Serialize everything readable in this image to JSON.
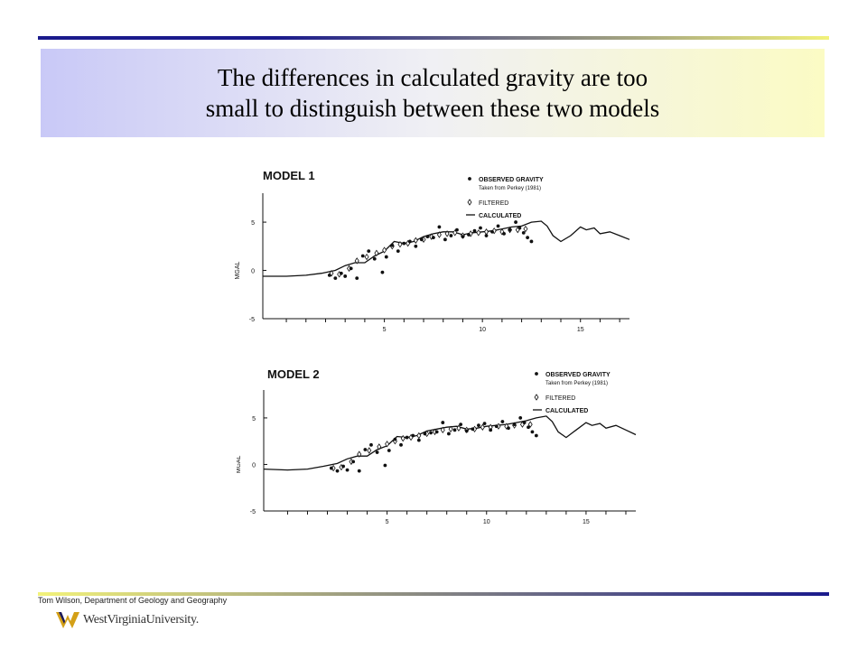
{
  "title": {
    "line1": "The differences in calculated gravity are too",
    "line2": "small to distinguish between these two models"
  },
  "footer": {
    "credit": "Tom Wilson, Department of Geology and Geography",
    "logo_text": "WestVirginiaUniversity."
  },
  "colors": {
    "rule_dark": "#1a1a8c",
    "rule_light": "#f2f27a",
    "title_left": "#c9c9f7",
    "title_right": "#fbfbc4",
    "ink": "#111111",
    "logo_gold": "#d4a017"
  },
  "chart_data": [
    {
      "type": "line",
      "title": "MODEL 1",
      "ylabel": "MGAL",
      "xlim": [
        -1.2,
        17.5
      ],
      "ylim": [
        -5,
        8
      ],
      "xticks": [
        5,
        10,
        15
      ],
      "yticks": [
        5,
        0,
        -5
      ],
      "legend": {
        "observed": "OBSERVED GRAVITY",
        "observed_note": "Taken from Perkey (1981)",
        "filtered": "FILTERED",
        "calculated": "CALCULATED"
      },
      "series": [
        {
          "name": "CALCULATED",
          "kind": "line",
          "x": [
            -1.2,
            0,
            1,
            1.8,
            2.5,
            3,
            3.5,
            4,
            4.5,
            5,
            5.5,
            6,
            6.5,
            7,
            7.5,
            8,
            8.5,
            9,
            9.5,
            10,
            10.5,
            11,
            11.5,
            12,
            12.5,
            13,
            13.3,
            13.6,
            14,
            14.5,
            15,
            15.3,
            15.7,
            16,
            16.5,
            17,
            17.5
          ],
          "y": [
            -0.6,
            -0.6,
            -0.5,
            -0.3,
            0,
            0.5,
            0.8,
            0.8,
            1.5,
            2,
            3,
            2.8,
            3,
            3.5,
            3.8,
            4,
            4,
            3.7,
            3.9,
            4,
            4.1,
            4.3,
            4.5,
            4.6,
            5,
            5.1,
            4.6,
            3.6,
            3,
            3.6,
            4.5,
            4.2,
            4.4,
            3.8,
            4,
            3.6,
            3.2
          ]
        },
        {
          "name": "FILTERED",
          "kind": "diamond",
          "x": [
            2.3,
            2.7,
            3.2,
            3.6,
            4.1,
            4.6,
            5,
            5.4,
            5.8,
            6.2,
            6.6,
            7,
            7.4,
            7.8,
            8.2,
            8.6,
            9,
            9.4,
            9.8,
            10.2,
            10.6,
            11,
            11.4,
            11.8,
            12.2
          ],
          "y": [
            -0.3,
            -0.4,
            0.2,
            1,
            1.4,
            1.8,
            2.1,
            2.5,
            2.7,
            2.8,
            3.1,
            3.2,
            3.5,
            3.7,
            3.8,
            3.9,
            3.6,
            3.8,
            3.9,
            4,
            4.1,
            4,
            4.2,
            4.2,
            4.3
          ]
        },
        {
          "name": "OBSERVED GRAVITY",
          "kind": "dot",
          "x": [
            2.2,
            2.5,
            2.8,
            3.0,
            3.3,
            3.6,
            3.9,
            4.2,
            4.5,
            4.9,
            5.1,
            5.4,
            5.7,
            6.0,
            6.3,
            6.6,
            6.9,
            7.2,
            7.5,
            7.8,
            8.1,
            8.4,
            8.7,
            9.0,
            9.3,
            9.6,
            9.9,
            10.2,
            10.5,
            10.8,
            11.1,
            11.4,
            11.7,
            11.9,
            12.1,
            12.3,
            12.5
          ],
          "y": [
            -0.5,
            -0.8,
            -0.3,
            -0.6,
            0.2,
            -0.8,
            1.5,
            2,
            1.2,
            -0.2,
            1.4,
            2.6,
            2,
            2.8,
            3,
            2.5,
            3.2,
            3.5,
            3.4,
            4.5,
            3.2,
            3.6,
            4.2,
            3.5,
            3.7,
            4.1,
            4.4,
            3.6,
            4,
            4.6,
            3.8,
            4.2,
            5,
            4.4,
            3.9,
            3.4,
            3
          ]
        }
      ]
    },
    {
      "type": "line",
      "title": "MODEL 2",
      "ylabel": "MGAL",
      "xlim": [
        -1.2,
        17.5
      ],
      "ylim": [
        -5,
        8
      ],
      "xticks": [
        5,
        10,
        15
      ],
      "yticks": [
        5,
        0,
        -5
      ],
      "legend": {
        "observed": "OBSERVED GRAVITY",
        "observed_note": "Taken from Perkey (1981)",
        "filtered": "FILTERED",
        "calculated": "CALCULATED"
      },
      "series": [
        {
          "name": "CALCULATED",
          "kind": "line",
          "x": [
            -1.2,
            0,
            1,
            1.8,
            2.5,
            3,
            3.5,
            4,
            4.5,
            5,
            5.5,
            6,
            6.5,
            7,
            7.5,
            8,
            8.5,
            9,
            9.5,
            10,
            10.5,
            11,
            11.5,
            12,
            12.5,
            13,
            13.3,
            13.6,
            14,
            14.5,
            15,
            15.3,
            15.7,
            16,
            16.5,
            17,
            17.5
          ],
          "y": [
            -0.5,
            -0.6,
            -0.5,
            -0.2,
            0.1,
            0.6,
            0.9,
            0.9,
            1.6,
            2,
            3,
            2.9,
            3.1,
            3.6,
            3.8,
            4,
            4.1,
            3.8,
            3.9,
            4.1,
            4.2,
            4.3,
            4.5,
            4.7,
            5,
            5.2,
            4.6,
            3.5,
            2.9,
            3.7,
            4.5,
            4.2,
            4.4,
            3.9,
            4.2,
            3.7,
            3.2
          ]
        },
        {
          "name": "FILTERED",
          "kind": "diamond",
          "x": [
            2.3,
            2.7,
            3.2,
            3.6,
            4.1,
            4.6,
            5,
            5.4,
            5.8,
            6.2,
            6.6,
            7,
            7.4,
            7.8,
            8.2,
            8.6,
            9,
            9.4,
            9.8,
            10.2,
            10.6,
            11,
            11.4,
            11.8,
            12.2
          ],
          "y": [
            -0.4,
            -0.3,
            0.3,
            1.1,
            1.5,
            1.9,
            2.2,
            2.5,
            2.8,
            2.9,
            3.1,
            3.3,
            3.5,
            3.7,
            3.8,
            3.9,
            3.7,
            3.8,
            4,
            4,
            4.1,
            4.1,
            4.2,
            4.3,
            4.3
          ]
        },
        {
          "name": "OBSERVED GRAVITY",
          "kind": "dot",
          "x": [
            2.2,
            2.5,
            2.8,
            3.0,
            3.3,
            3.6,
            3.9,
            4.2,
            4.5,
            4.9,
            5.1,
            5.4,
            5.7,
            6.0,
            6.3,
            6.6,
            6.9,
            7.2,
            7.5,
            7.8,
            8.1,
            8.4,
            8.7,
            9.0,
            9.3,
            9.6,
            9.9,
            10.2,
            10.5,
            10.8,
            11.1,
            11.4,
            11.7,
            11.9,
            12.1,
            12.3,
            12.5
          ],
          "y": [
            -0.4,
            -0.7,
            -0.2,
            -0.6,
            0.3,
            -0.7,
            1.6,
            2.1,
            1.3,
            -0.1,
            1.5,
            2.7,
            2.1,
            2.9,
            3.1,
            2.6,
            3.3,
            3.4,
            3.5,
            4.5,
            3.3,
            3.7,
            4.3,
            3.6,
            3.8,
            4.2,
            4.4,
            3.7,
            4.1,
            4.6,
            3.9,
            4.3,
            5,
            4.5,
            4,
            3.5,
            3.1
          ]
        }
      ]
    }
  ]
}
